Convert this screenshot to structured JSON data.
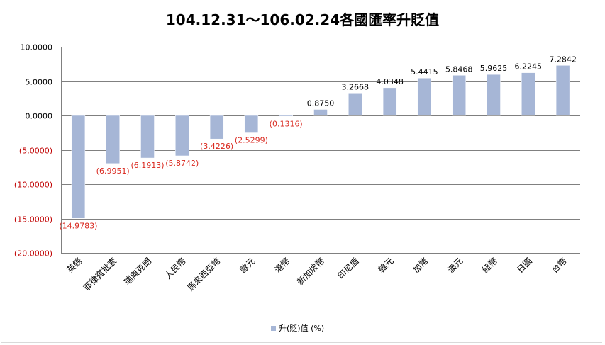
{
  "chart_data": {
    "type": "bar",
    "title": "104.12.31～106.02.24各國匯率升貶值",
    "categories": [
      "英鎊",
      "菲律賓批索",
      "瑞典克朗",
      "人民幣",
      "馬來西亞幣",
      "歐元",
      "港幣",
      "新加坡幣",
      "印尼盾",
      "韓元",
      "加幣",
      "澳元",
      "紐幣",
      "日圓",
      "台幣"
    ],
    "series": [
      {
        "name": "升(貶)值 (%)",
        "values": [
          -14.9783,
          -6.9951,
          -6.1913,
          -5.8742,
          -3.4226,
          -2.5299,
          -0.1316,
          0.875,
          3.2668,
          4.0348,
          5.4415,
          5.8468,
          5.9625,
          6.2245,
          7.2842
        ],
        "labels": [
          "(14.9783)",
          "(6.9951)",
          "(6.1913)",
          "(5.8742)",
          "(3.4226)",
          "(2.5299)",
          "(0.1316)",
          "0.8750",
          "3.2668",
          "4.0348",
          "5.4415",
          "5.8468",
          "5.9625",
          "6.2245",
          "7.2842"
        ]
      }
    ],
    "ylim": [
      -20,
      10
    ],
    "yticks": [
      10,
      5,
      0,
      -5,
      -10,
      -15,
      -20
    ],
    "ytick_labels": [
      "10.0000",
      "5.0000",
      "0.0000",
      "(5.0000)",
      "(10.0000)",
      "(15.0000)",
      "(20.0000)"
    ],
    "grid": true,
    "legend_position": "bottom",
    "colors": {
      "bar": "#a6b6d6",
      "bar_edge": "#ffffff",
      "negative_label": "#d9261c",
      "positive_label": "#000000",
      "negative_tick": "#c00000",
      "positive_tick": "#000000",
      "grid": "#808080"
    }
  },
  "legend": {
    "label": "升(貶)值 (%)"
  }
}
